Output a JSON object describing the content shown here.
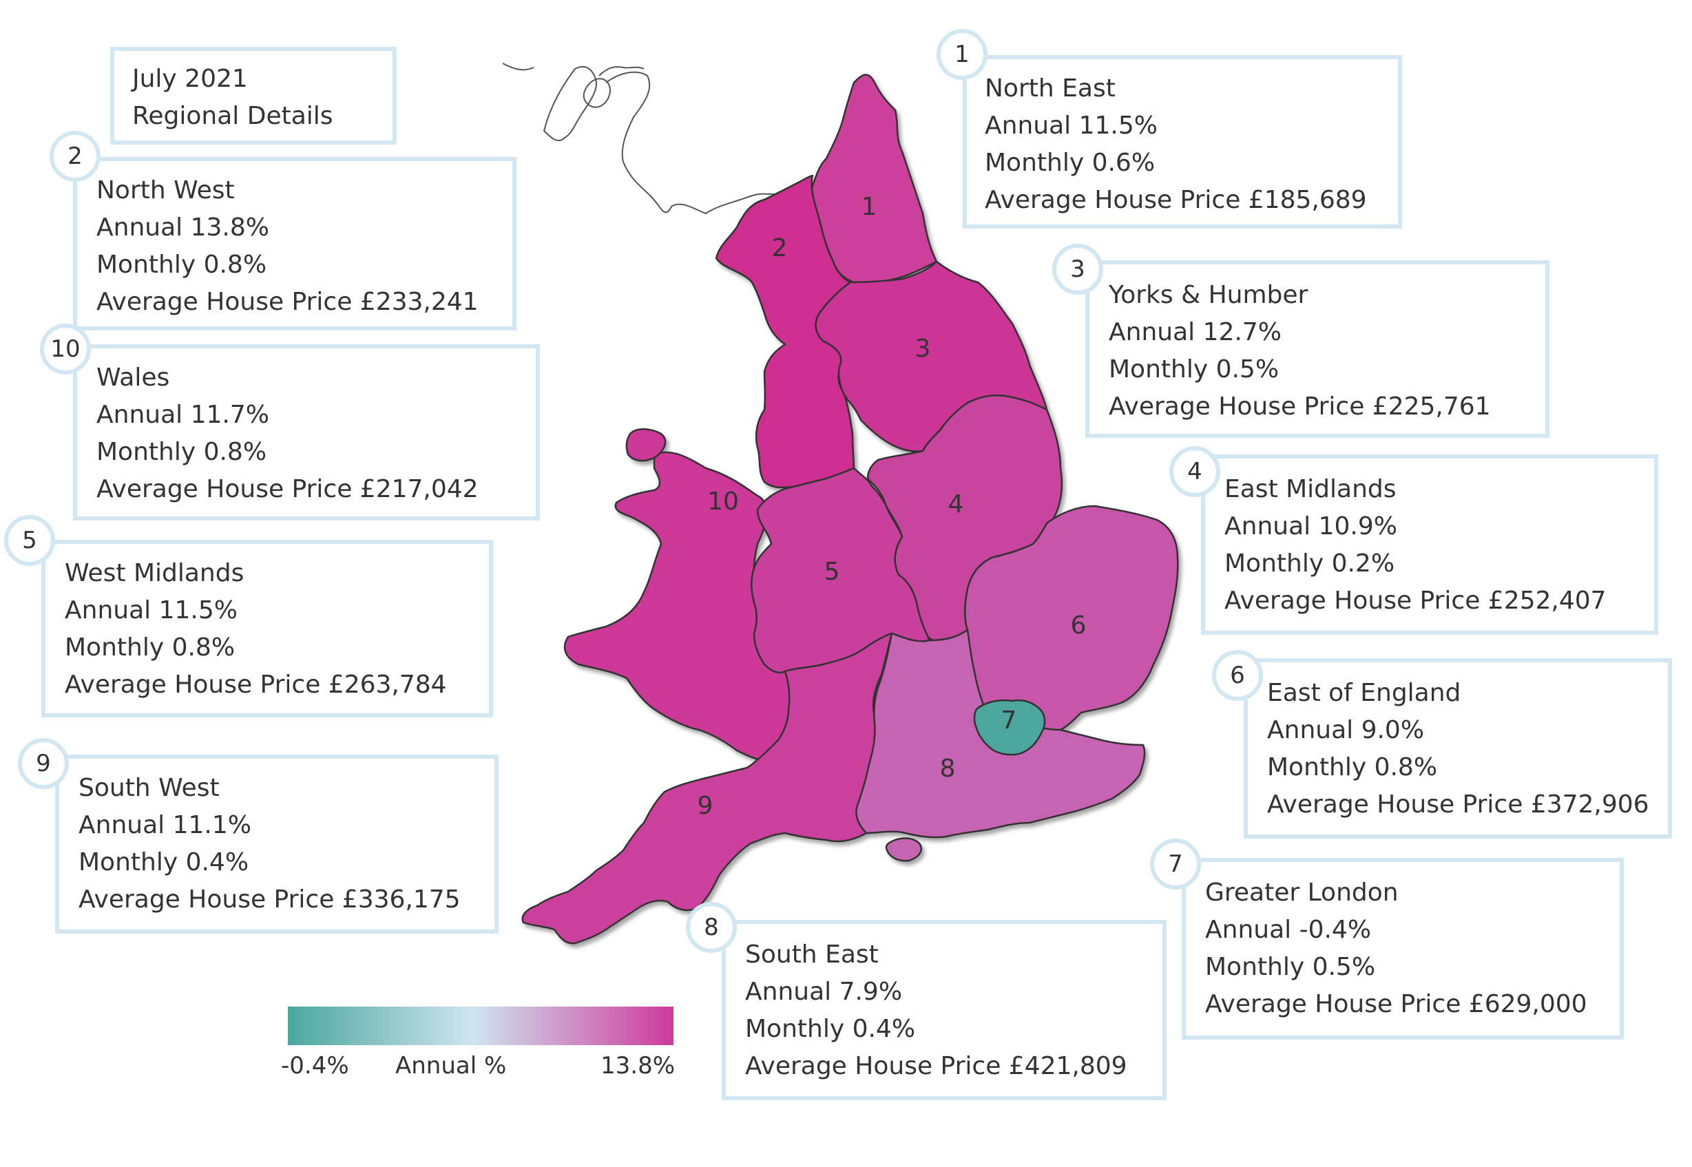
{
  "title": {
    "line1": "July 2021",
    "line2": "Regional Details"
  },
  "regions": [
    {
      "number": "1",
      "name": "North East",
      "annual": "Annual 11.5%",
      "monthly": "Monthly 0.6%",
      "price": "Average House Price £185,689",
      "annual_pct": 11.5,
      "color": "#cc3f9c"
    },
    {
      "number": "2",
      "name": "North West",
      "annual": "Annual 13.8%",
      "monthly": "Monthly 0.8%",
      "price": "Average House Price £233,241",
      "annual_pct": 13.8,
      "color": "#cd2e8f"
    },
    {
      "number": "3",
      "name": "Yorks & Humber",
      "annual": "Annual 12.7%",
      "monthly": "Monthly 0.5%",
      "price": "Average House Price £225,761",
      "annual_pct": 12.7,
      "color": "#cc3596"
    },
    {
      "number": "4",
      "name": "East Midlands",
      "annual": "Annual 10.9%",
      "monthly": "Monthly 0.2%",
      "price": "Average House Price £252,407",
      "annual_pct": 10.9,
      "color": "#c8449e"
    },
    {
      "number": "5",
      "name": "West Midlands",
      "annual": "Annual 11.5%",
      "monthly": "Monthly 0.8%",
      "price": "Average House Price £263,784",
      "annual_pct": 11.5,
      "color": "#c9409c"
    },
    {
      "number": "6",
      "name": "East of England",
      "annual": "Annual 9.0%",
      "monthly": "Monthly 0.8%",
      "price": "Average House Price £372,906",
      "annual_pct": 9.0,
      "color": "#c755a9"
    },
    {
      "number": "7",
      "name": "Greater London",
      "annual": "Annual -0.4%",
      "monthly": "Monthly 0.5%",
      "price": "Average House Price £629,000",
      "annual_pct": -0.4,
      "color": "#4ca69e"
    },
    {
      "number": "8",
      "name": "South East",
      "annual": "Annual 7.9%",
      "monthly": "Monthly 0.4%",
      "price": "Average House Price £421,809",
      "annual_pct": 7.9,
      "color": "#c664b2"
    },
    {
      "number": "9",
      "name": "South West",
      "annual": "Annual 11.1%",
      "monthly": "Monthly 0.4%",
      "price": "Average House Price £336,175",
      "annual_pct": 11.1,
      "color": "#ca409c"
    },
    {
      "number": "10",
      "name": "Wales",
      "annual": "Annual 11.7%",
      "monthly": "Monthly 0.8%",
      "price": "Average House Price £217,042",
      "annual_pct": 11.7,
      "color": "#cb3798"
    }
  ],
  "legend": {
    "min": "-0.4%",
    "label": "Annual %",
    "max": "13.8%",
    "min_color": "#4ba79f",
    "mid_color": "#cfe4ef",
    "max_color": "#cd3a9b"
  }
}
